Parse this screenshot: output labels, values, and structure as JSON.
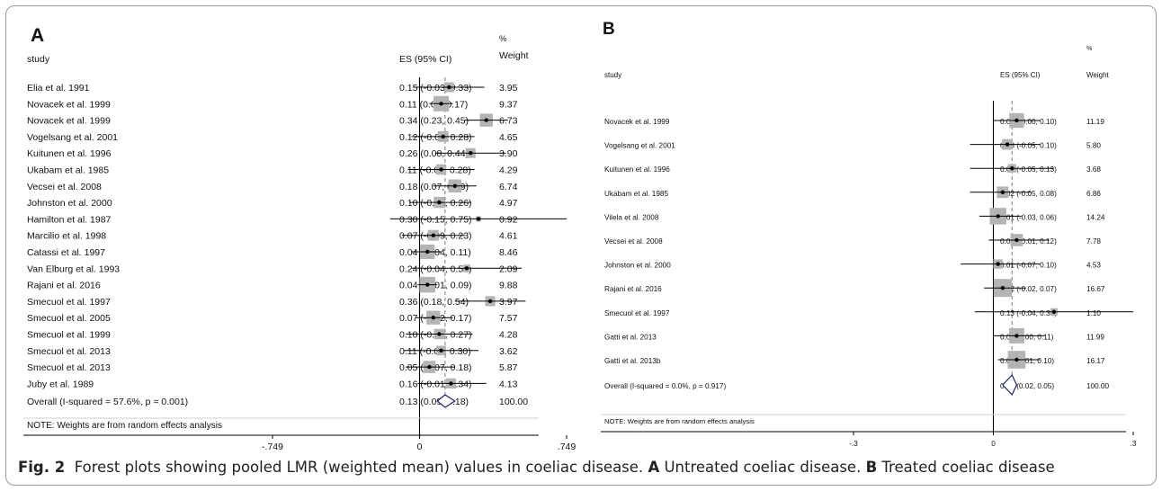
{
  "figure": {
    "caption": {
      "label": "Fig. 2",
      "text_intro": "Forest plots showing pooled LMR (weighted mean) values in coeliac disease.",
      "a_label": "A",
      "a_text": "Untreated coeliac disease.",
      "b_label": "B",
      "b_text": "Treated coeliac disease"
    }
  },
  "chart_data": [
    {
      "type": "forest",
      "panel_label": "A",
      "headers": {
        "study": "study",
        "es": "ES (95% CI)",
        "weight_top": "%",
        "weight_bottom": "Weight"
      },
      "note": "NOTE: Weights are from random effects analysis",
      "x_ticks": [
        "-.749",
        "0",
        ".749"
      ],
      "x_tick_values": [
        -0.749,
        0,
        0.749
      ],
      "xlim": [
        -0.749,
        0.749
      ],
      "studies": [
        {
          "study": "Elia et al. 1991",
          "es": 0.15,
          "lo": -0.03,
          "hi": 0.33,
          "ci_text": "0.15 (-0.03, 0.33)",
          "weight": "3.95"
        },
        {
          "study": "Novacek et al. 1999",
          "es": 0.11,
          "lo": 0.05,
          "hi": 0.17,
          "ci_text": "0.11 (0.05, 0.17)",
          "weight": "9.37"
        },
        {
          "study": "Novacek et al. 1999",
          "es": 0.34,
          "lo": 0.23,
          "hi": 0.45,
          "ci_text": "0.34 (0.23, 0.45)",
          "weight": "6.73"
        },
        {
          "study": "Vogelsang et al. 2001",
          "es": 0.12,
          "lo": -0.04,
          "hi": 0.28,
          "ci_text": "0.12 (-0.04, 0.28)",
          "weight": "4.65"
        },
        {
          "study": "Kuitunen et al. 1996",
          "es": 0.26,
          "lo": 0.08,
          "hi": 0.44,
          "ci_text": "0.26 (0.08, 0.44)",
          "weight": "3.90"
        },
        {
          "study": "Ukabam et al. 1985",
          "es": 0.11,
          "lo": -0.06,
          "hi": 0.28,
          "ci_text": "0.11 (-0.06, 0.28)",
          "weight": "4.29"
        },
        {
          "study": "Vecsei et al. 2008",
          "es": 0.18,
          "lo": 0.07,
          "hi": 0.29,
          "ci_text": "0.18 (0.07, 0.29)",
          "weight": "6.74"
        },
        {
          "study": "Johnston et al. 2000",
          "es": 0.1,
          "lo": -0.05,
          "hi": 0.26,
          "ci_text": "0.10 (-0.05, 0.26)",
          "weight": "4.97"
        },
        {
          "study": "Hamilton et al. 1987",
          "es": 0.3,
          "lo": -0.15,
          "hi": 0.75,
          "ci_text": "0.30 (-0.15, 0.75)",
          "weight": "0.92"
        },
        {
          "study": "Marcilio et al. 1998",
          "es": 0.07,
          "lo": -0.09,
          "hi": 0.23,
          "ci_text": "0.07 (-0.09, 0.23)",
          "weight": "4.61"
        },
        {
          "study": "Catassi et al. 1997",
          "es": 0.04,
          "lo": -0.04,
          "hi": 0.11,
          "ci_text": "0.04 (-0.04, 0.11)",
          "weight": "8.46"
        },
        {
          "study": "Van Elburg et al. 1993",
          "es": 0.24,
          "lo": -0.04,
          "hi": 0.52,
          "ci_text": "0.24 (-0.04, 0.52)",
          "weight": "2.09"
        },
        {
          "study": "Rajani et al. 2016",
          "es": 0.04,
          "lo": -0.01,
          "hi": 0.09,
          "ci_text": "0.04 (-0.01, 0.09)",
          "weight": "9.88"
        },
        {
          "study": "Smecuol et al. 1997",
          "es": 0.36,
          "lo": 0.18,
          "hi": 0.54,
          "ci_text": "0.36 (0.18, 0.54)",
          "weight": "3.97"
        },
        {
          "study": "Smecuol et al. 2005",
          "es": 0.07,
          "lo": -0.02,
          "hi": 0.17,
          "ci_text": "0.07 (-0.02, 0.17)",
          "weight": "7.57"
        },
        {
          "study": "Smecuol et al. 1999",
          "es": 0.1,
          "lo": -0.07,
          "hi": 0.27,
          "ci_text": "0.10 (-0.07, 0.27)",
          "weight": "4.28"
        },
        {
          "study": "Smecuol et al. 2013",
          "es": 0.11,
          "lo": -0.08,
          "hi": 0.3,
          "ci_text": "0.11 (-0.08, 0.30)",
          "weight": "3.62"
        },
        {
          "study": "Smecuol et al. 2013",
          "es": 0.05,
          "lo": -0.07,
          "hi": 0.18,
          "ci_text": "0.05 (-0.07, 0.18)",
          "weight": "5.87"
        },
        {
          "study": "Juby et al. 1989",
          "es": 0.16,
          "lo": -0.01,
          "hi": 0.34,
          "ci_text": "0.16 (-0.01, 0.34)",
          "weight": "4.13"
        }
      ],
      "overall": {
        "study": "Overall  (I-squared = 57.6%, p = 0.001)",
        "es": 0.13,
        "lo": 0.09,
        "hi": 0.18,
        "ci_text": "0.13 (0.09, 0.18)",
        "weight": "100.00"
      }
    },
    {
      "type": "forest",
      "panel_label": "B",
      "headers": {
        "study": "study",
        "es": "ES (95% CI)",
        "weight_top": "%",
        "weight_bottom": "Weight"
      },
      "note": "NOTE: Weights are from random effects analysis",
      "x_ticks": [
        "-.3",
        "0",
        ".3"
      ],
      "x_tick_values": [
        -0.3,
        0,
        0.3
      ],
      "xlim": [
        -0.3,
        0.3
      ],
      "studies": [
        {
          "study": "Novacek et al. 1999",
          "es": 0.05,
          "lo": 0.0,
          "hi": 0.1,
          "ci_text": "0.05 (-0.00, 0.10)",
          "weight": "11.19"
        },
        {
          "study": "Vogelsang et al. 2001",
          "es": 0.03,
          "lo": -0.05,
          "hi": 0.1,
          "ci_text": "0.03 (-0.05, 0.10)",
          "weight": "5.80"
        },
        {
          "study": "Kuitunen et al. 1996",
          "es": 0.04,
          "lo": -0.05,
          "hi": 0.13,
          "ci_text": "0.04 (-0.05, 0.13)",
          "weight": "3.68"
        },
        {
          "study": "Ukabam et al. 1985",
          "es": 0.02,
          "lo": -0.05,
          "hi": 0.08,
          "ci_text": "0.02 (-0.05, 0.08)",
          "weight": "6.86"
        },
        {
          "study": "Vilela et al. 2008",
          "es": 0.01,
          "lo": -0.03,
          "hi": 0.06,
          "ci_text": "0.01 (-0.03, 0.06)",
          "weight": "14.24"
        },
        {
          "study": "Vecsei et al. 2008",
          "es": 0.05,
          "lo": -0.01,
          "hi": 0.12,
          "ci_text": "0.05 (-0.01, 0.12)",
          "weight": "7.78"
        },
        {
          "study": "Johnston et al. 2000",
          "es": 0.01,
          "lo": -0.07,
          "hi": 0.1,
          "ci_text": "0.01 (-0.07, 0.10)",
          "weight": "4.53"
        },
        {
          "study": "Rajani et al. 2016",
          "es": 0.02,
          "lo": -0.02,
          "hi": 0.07,
          "ci_text": "0.02 (-0.02, 0.07)",
          "weight": "16.67"
        },
        {
          "study": "Smecuol et al. 1997",
          "es": 0.13,
          "lo": -0.04,
          "hi": 0.3,
          "ci_text": "0.13 (-0.04, 0.30)",
          "weight": "1.10"
        },
        {
          "study": "Gatti et al. 2013",
          "es": 0.05,
          "lo": 0.0,
          "hi": 0.11,
          "ci_text": "0.05 (0.00, 0.11)",
          "weight": "11.99"
        },
        {
          "study": "Gatti et al. 2013b",
          "es": 0.05,
          "lo": 0.01,
          "hi": 0.1,
          "ci_text": "0.05 (0.01, 0.10)",
          "weight": "16.17"
        }
      ],
      "overall": {
        "study": "Overall  (I-squared = 0.0%, p = 0.917)",
        "es": 0.04,
        "lo": 0.02,
        "hi": 0.05,
        "ci_text": "0.04 (0.02, 0.05)",
        "weight": "100.00"
      }
    }
  ]
}
